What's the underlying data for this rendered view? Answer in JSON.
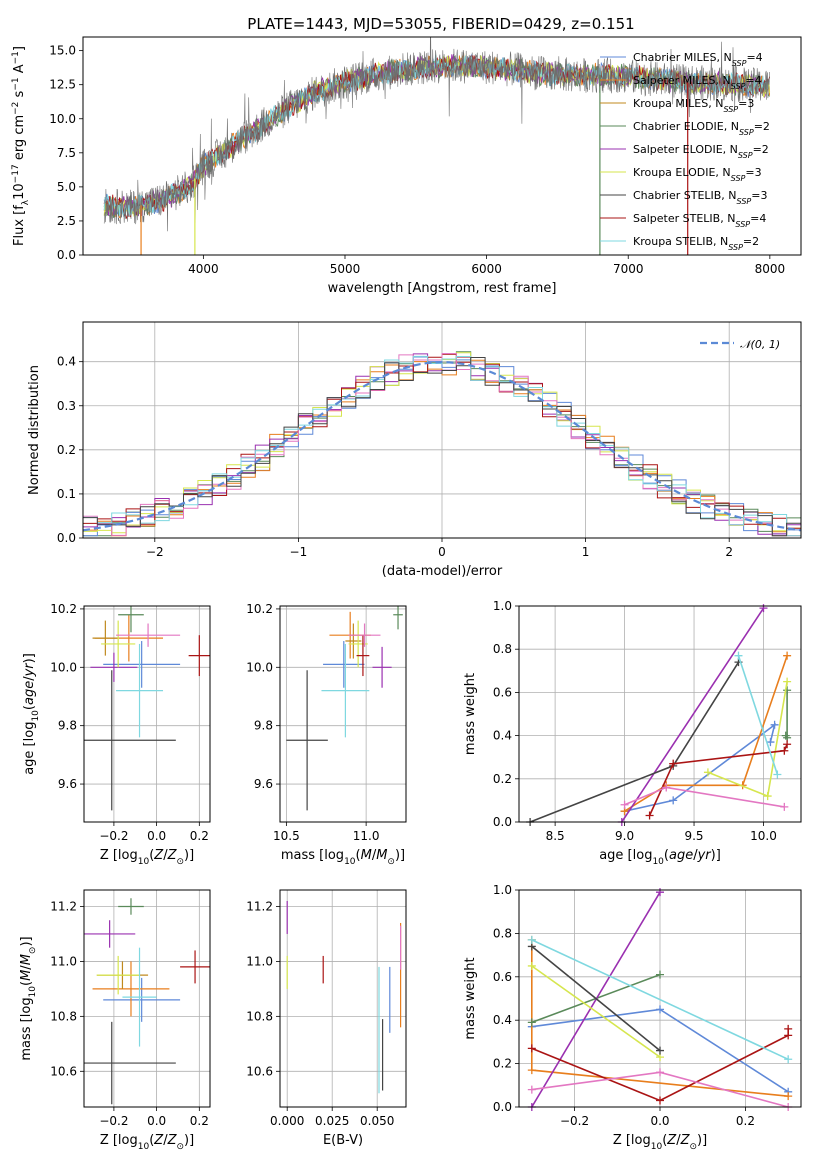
{
  "figure_title": "PLATE=1443, MJD=53055, FIBERID=0429, z=0.151",
  "models": [
    {
      "name": "Chabrier MILES",
      "nssp": "4",
      "color": "#5f89d8"
    },
    {
      "name": "Salpeter MILES",
      "nssp": "4",
      "color": "#e87e1d"
    },
    {
      "name": "Kroupa MILES",
      "nssp": "3",
      "color": "#c08a1e"
    },
    {
      "name": "Chabrier ELODIE",
      "nssp": "2",
      "color": "#5a8a5a"
    },
    {
      "name": "Salpeter ELODIE",
      "nssp": "2",
      "color": "#9a30b0"
    },
    {
      "name": "Kroupa ELODIE",
      "nssp": "3",
      "color": "#d6e64e"
    },
    {
      "name": "Chabrier STELIB",
      "nssp": "3",
      "color": "#444444"
    },
    {
      "name": "Salpeter STELIB",
      "nssp": "4",
      "color": "#aa1414"
    },
    {
      "name": "Kroupa STELIB",
      "nssp": "2",
      "color": "#7fd8e0"
    }
  ],
  "chart_data": [
    {
      "type": "line",
      "name": "spectrum",
      "xlabel": "wavelength [Angstrom, rest frame]",
      "ylabel": "Flux [f",
      "xlim": [
        3150,
        8220
      ],
      "ylim": [
        0,
        16
      ],
      "xticks": [
        4000,
        5000,
        6000,
        7000,
        8000
      ],
      "yticks": [
        0.0,
        2.5,
        5.0,
        7.5,
        10.0,
        12.5,
        15.0
      ],
      "continuum_x": [
        3300,
        3500,
        3700,
        3900,
        4000,
        4200,
        4400,
        4600,
        4800,
        5000,
        5200,
        5400,
        5600,
        5800,
        6000,
        6200,
        6400,
        6600,
        6800,
        7000,
        7200,
        7400,
        7600,
        7800,
        8000
      ],
      "continuum_y": [
        3.6,
        3.5,
        4.0,
        5.0,
        6.5,
        8.0,
        9.4,
        10.8,
        12.0,
        12.7,
        13.2,
        13.6,
        13.8,
        13.9,
        13.8,
        13.6,
        13.3,
        13.2,
        13.2,
        13.1,
        12.9,
        12.7,
        12.6,
        12.5,
        12.4
      ]
    },
    {
      "type": "bar",
      "name": "residual-histogram",
      "xlabel": "(data-model)/error",
      "ylabel": "Normed distribution",
      "xlim": [
        -2.5,
        2.5
      ],
      "ylim": [
        0,
        0.49
      ],
      "xticks": [
        -2,
        -1,
        0,
        1,
        2
      ],
      "yticks": [
        0.0,
        0.1,
        0.2,
        0.3,
        0.4
      ],
      "gauss_label": "𝒩(0, 1)",
      "bin_width": 0.1
    },
    {
      "type": "scatter",
      "name": "Z-age",
      "xlabel": "Z [log",
      "ylabel": "age  [log",
      "xlim": [
        -0.34,
        0.25
      ],
      "ylim": [
        9.47,
        10.21
      ],
      "xticks": [
        -0.2,
        0.0,
        0.2
      ],
      "yticks": [
        9.6,
        9.8,
        10.0,
        10.2
      ],
      "points": [
        {
          "x": -0.07,
          "y": 10.01,
          "xerr": 0.18,
          "yerr": 0.08,
          "c": 0
        },
        {
          "x": -0.13,
          "y": 10.1,
          "xerr": 0.16,
          "yerr": 0.08,
          "c": 1
        },
        {
          "x": -0.24,
          "y": 10.1,
          "xerr": 0.06,
          "yerr": 0.06,
          "c": 2
        },
        {
          "x": -0.12,
          "y": 10.18,
          "xerr": 0.06,
          "yerr": 0.06,
          "c": 3
        },
        {
          "x": -0.2,
          "y": 10.0,
          "xerr": 0.11,
          "yerr": 0.05,
          "c": 4
        },
        {
          "x": -0.18,
          "y": 10.08,
          "xerr": 0.08,
          "yerr": 0.08,
          "c": 5
        },
        {
          "x": -0.21,
          "y": 9.75,
          "xerr": 0.3,
          "yerr": 0.24,
          "c": 6
        },
        {
          "x": 0.2,
          "y": 10.04,
          "xerr": 0.05,
          "yerr": 0.07,
          "c": 7
        },
        {
          "x": -0.08,
          "y": 9.92,
          "xerr": 0.11,
          "yerr": 0.16,
          "c": 8
        },
        {
          "x": -0.04,
          "y": 10.11,
          "xerr": 0.15,
          "yerr": 0.04,
          "c": 9
        },
        {
          "x": -0.22,
          "y": 10.0,
          "xerr": 0.05,
          "yerr": 0.05,
          "c": 10
        }
      ]
    },
    {
      "type": "scatter",
      "name": "mass-age",
      "xlabel": "mass [log",
      "ylabel": "",
      "xlim": [
        10.46,
        11.25
      ],
      "ylim": [
        9.47,
        10.21
      ],
      "xticks": [
        10.5,
        11.0
      ],
      "yticks": [
        9.6,
        9.8,
        10.0,
        10.2
      ],
      "points": [
        {
          "x": 10.86,
          "y": 10.01,
          "xerr": 0.13,
          "yerr": 0.08,
          "c": 0
        },
        {
          "x": 10.9,
          "y": 10.11,
          "xerr": 0.13,
          "yerr": 0.08,
          "c": 1
        },
        {
          "x": 10.92,
          "y": 10.09,
          "xerr": 0.05,
          "yerr": 0.06,
          "c": 2
        },
        {
          "x": 11.2,
          "y": 10.18,
          "xerr": 0.03,
          "yerr": 0.05,
          "c": 3
        },
        {
          "x": 11.1,
          "y": 10.0,
          "xerr": 0.06,
          "yerr": 0.07,
          "c": 4
        },
        {
          "x": 10.95,
          "y": 10.08,
          "xerr": 0.06,
          "yerr": 0.08,
          "c": 5
        },
        {
          "x": 10.63,
          "y": 9.75,
          "xerr": 0.13,
          "yerr": 0.24,
          "c": 6
        },
        {
          "x": 10.98,
          "y": 10.04,
          "xerr": 0.04,
          "yerr": 0.07,
          "c": 7
        },
        {
          "x": 10.87,
          "y": 9.92,
          "xerr": 0.15,
          "yerr": 0.16,
          "c": 8
        },
        {
          "x": 10.99,
          "y": 10.11,
          "xerr": 0.1,
          "yerr": 0.04,
          "c": 9
        }
      ]
    },
    {
      "type": "line",
      "name": "age-massweight",
      "xlabel": "age  [log",
      "ylabel": "mass weight",
      "xlim": [
        8.24,
        10.27
      ],
      "ylim": [
        0,
        1.0
      ],
      "xticks": [
        8.5,
        9.0,
        9.5,
        10.0
      ],
      "yticks": [
        0.0,
        0.2,
        0.4,
        0.6,
        0.8,
        1.0
      ],
      "series": [
        {
          "c": 0,
          "x": [
            9.0,
            9.35,
            10.08,
            10.05
          ],
          "y": [
            0.05,
            0.1,
            0.45,
            0.37
          ]
        },
        {
          "c": 1,
          "x": [
            9.0,
            9.3,
            9.85,
            10.17
          ],
          "y": [
            0.05,
            0.17,
            0.17,
            0.77
          ]
        },
        {
          "c": 3,
          "x": [
            10.17,
            10.17,
            10.16
          ],
          "y": [
            0.61,
            0.39,
            0.4
          ]
        },
        {
          "c": 4,
          "x": [
            8.98,
            10.0
          ],
          "y": [
            0.0,
            0.99
          ]
        },
        {
          "c": 5,
          "x": [
            9.6,
            10.03,
            10.17
          ],
          "y": [
            0.23,
            0.12,
            0.65
          ]
        },
        {
          "c": 6,
          "x": [
            8.32,
            9.35,
            9.82
          ],
          "y": [
            0.0,
            0.26,
            0.74
          ]
        },
        {
          "c": 7,
          "x": [
            9.18,
            9.35,
            10.15,
            10.17
          ],
          "y": [
            0.03,
            0.27,
            0.33,
            0.36
          ]
        },
        {
          "c": 8,
          "x": [
            9.82,
            10.1
          ],
          "y": [
            0.77,
            0.22
          ]
        },
        {
          "c": 9,
          "x": [
            9.0,
            9.3,
            10.15
          ],
          "y": [
            0.08,
            0.16,
            0.07
          ]
        }
      ]
    },
    {
      "type": "scatter",
      "name": "Z-mass",
      "xlabel": "Z [log",
      "ylabel": "mass [log",
      "xlim": [
        -0.34,
        0.25
      ],
      "ylim": [
        10.47,
        11.26
      ],
      "xticks": [
        -0.2,
        0.0,
        0.2
      ],
      "yticks": [
        10.6,
        10.8,
        11.0,
        11.2
      ],
      "points": [
        {
          "x": -0.07,
          "y": 10.86,
          "xerr": 0.18,
          "yerr": 0.08,
          "c": 0
        },
        {
          "x": -0.12,
          "y": 10.9,
          "xerr": 0.18,
          "yerr": 0.1,
          "c": 1
        },
        {
          "x": -0.16,
          "y": 10.95,
          "xerr": 0.12,
          "yerr": 0.05,
          "c": 2
        },
        {
          "x": -0.12,
          "y": 11.2,
          "xerr": 0.06,
          "yerr": 0.03,
          "c": 3
        },
        {
          "x": -0.22,
          "y": 11.1,
          "xerr": 0.12,
          "yerr": 0.05,
          "c": 4
        },
        {
          "x": -0.18,
          "y": 10.95,
          "xerr": 0.1,
          "yerr": 0.07,
          "c": 5
        },
        {
          "x": -0.21,
          "y": 10.63,
          "xerr": 0.3,
          "yerr": 0.15,
          "c": 6
        },
        {
          "x": 0.18,
          "y": 10.98,
          "xerr": 0.07,
          "yerr": 0.06,
          "c": 7
        },
        {
          "x": -0.08,
          "y": 10.87,
          "xerr": 0.08,
          "yerr": 0.18,
          "c": 8
        }
      ]
    },
    {
      "type": "scatter",
      "name": "EBV-mass",
      "xlabel": "E(B-V)",
      "ylabel": "",
      "xlim": [
        -0.004,
        0.066
      ],
      "ylim": [
        10.47,
        11.26
      ],
      "xticks": [
        0.0,
        0.025,
        0.05
      ],
      "xticklabels": [
        "0.000",
        "0.025",
        "0.050"
      ],
      "yticks": [
        10.6,
        10.8,
        11.0,
        11.2
      ],
      "points": [
        {
          "x": 0.057,
          "y": 10.86,
          "yerr": 0.12,
          "c": 0
        },
        {
          "x": 0.063,
          "y": 10.95,
          "yerr": 0.19,
          "c": 1
        },
        {
          "x": 0.0,
          "y": 11.16,
          "yerr": 0.06,
          "c": 4
        },
        {
          "x": 0.0,
          "y": 10.96,
          "yerr": 0.06,
          "c": 5
        },
        {
          "x": 0.053,
          "y": 10.66,
          "yerr": 0.13,
          "c": 6
        },
        {
          "x": 0.02,
          "y": 10.97,
          "yerr": 0.05,
          "c": 7
        },
        {
          "x": 0.051,
          "y": 10.75,
          "yerr": 0.23,
          "c": 8
        },
        {
          "x": 0.063,
          "y": 11.05,
          "yerr": 0.08,
          "c": 9
        }
      ]
    },
    {
      "type": "line",
      "name": "Z-massweight",
      "xlabel": "Z [log",
      "ylabel": "mass weight",
      "xlim": [
        -0.33,
        0.33
      ],
      "ylim": [
        0,
        1.0
      ],
      "xticks": [
        -0.2,
        0.0,
        0.2
      ],
      "yticks": [
        0.0,
        0.2,
        0.4,
        0.6,
        0.8,
        1.0
      ],
      "series": [
        {
          "c": 0,
          "x": [
            -0.3,
            0.0,
            0.3
          ],
          "y": [
            0.37,
            0.45,
            0.07
          ]
        },
        {
          "c": 1,
          "x": [
            -0.3,
            -0.3,
            0.3
          ],
          "y": [
            0.77,
            0.17,
            0.05
          ]
        },
        {
          "c": 3,
          "x": [
            -0.3,
            0.0
          ],
          "y": [
            0.39,
            0.61
          ]
        },
        {
          "c": 4,
          "x": [
            -0.3,
            0.0
          ],
          "y": [
            0.0,
            0.99
          ]
        },
        {
          "c": 5,
          "x": [
            -0.3,
            0.0
          ],
          "y": [
            0.65,
            0.23
          ]
        },
        {
          "c": 6,
          "x": [
            -0.3,
            0.0
          ],
          "y": [
            0.74,
            0.26
          ]
        },
        {
          "c": 7,
          "x": [
            -0.3,
            0.0,
            0.3,
            0.3
          ],
          "y": [
            0.27,
            0.03,
            0.33,
            0.36
          ]
        },
        {
          "c": 8,
          "x": [
            -0.3,
            0.3
          ],
          "y": [
            0.77,
            0.22
          ]
        },
        {
          "c": 9,
          "x": [
            -0.3,
            0.0,
            0.3
          ],
          "y": [
            0.08,
            0.16,
            0.0
          ]
        }
      ]
    }
  ]
}
